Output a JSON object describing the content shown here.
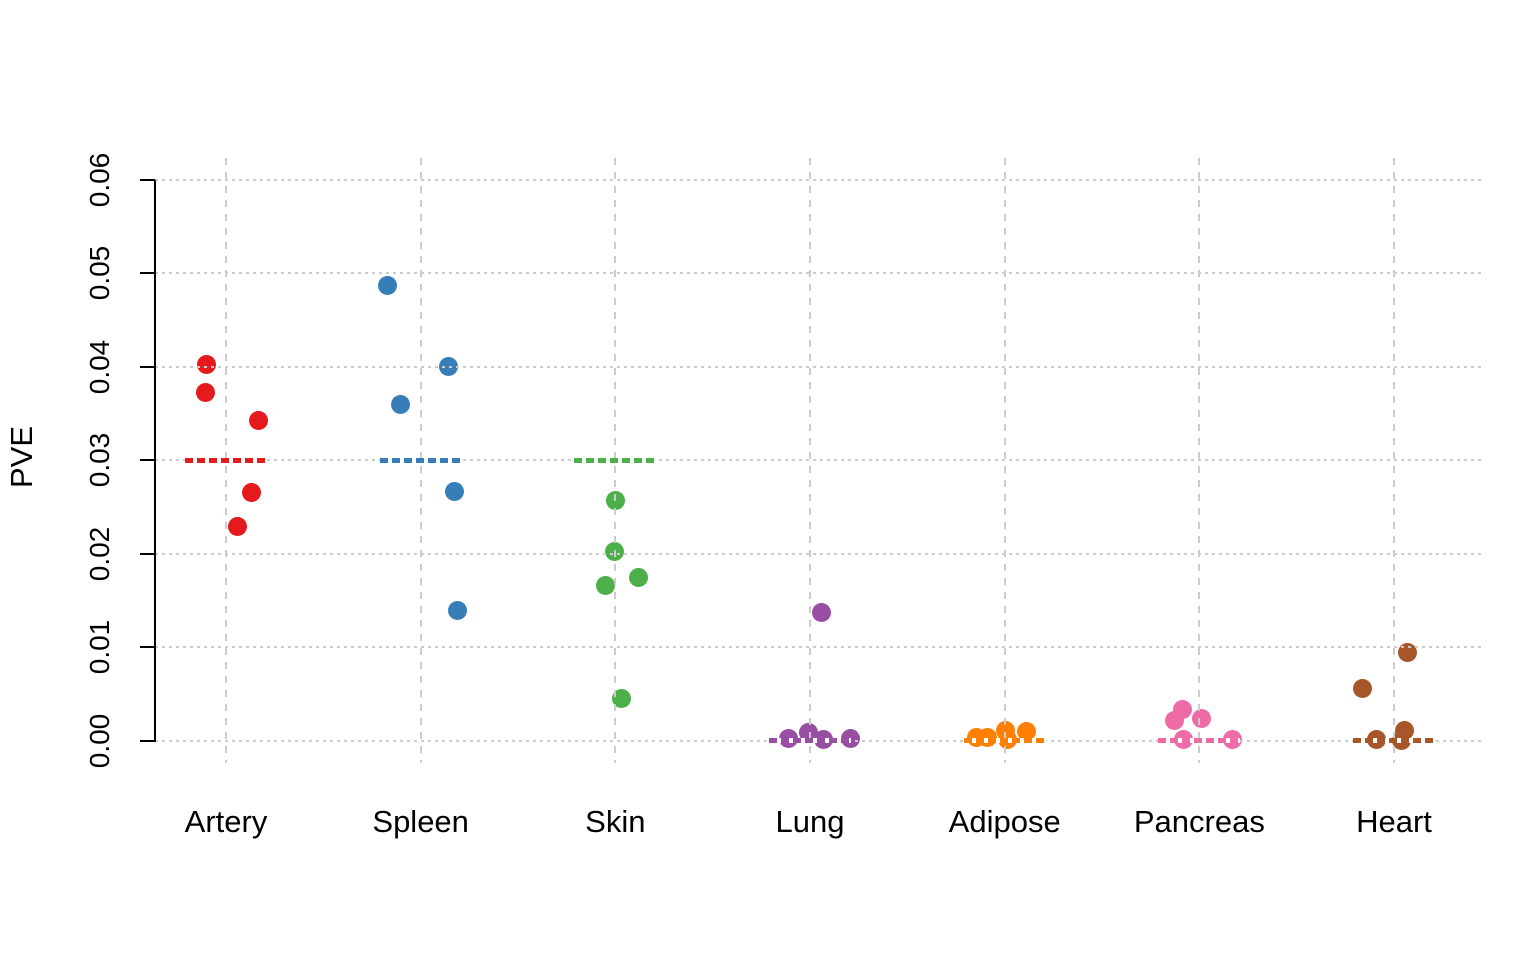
{
  "chart_data": {
    "type": "scatter",
    "variant": "stripchart-beeswarm",
    "title": "",
    "xlabel": "",
    "ylabel": "PVE",
    "ylim": [
      0,
      0.06
    ],
    "ytick_values": [
      0,
      0.01,
      0.02,
      0.03,
      0.04,
      0.05,
      0.06
    ],
    "ytick_labels": [
      "0.00",
      "0.01",
      "0.02",
      "0.03",
      "0.04",
      "0.05",
      "0.06"
    ],
    "grid": "dashed light-gray, horizontal at each y tick and vertical at each category",
    "legend_position": "none",
    "categories": [
      "Artery",
      "Spleen",
      "Skin",
      "Lung",
      "Adipose",
      "Pancreas",
      "Heart"
    ],
    "series": [
      {
        "name": "Artery",
        "color": "#e41a1c",
        "reference_line": 0.03,
        "points": [
          {
            "v": 0.0403,
            "dx": -20
          },
          {
            "v": 0.0373,
            "dx": -21
          },
          {
            "v": 0.0343,
            "dx": 32
          },
          {
            "v": 0.0265,
            "dx": 25
          },
          {
            "v": 0.0229,
            "dx": 11
          }
        ]
      },
      {
        "name": "Spleen",
        "color": "#377eb8",
        "reference_line": 0.03,
        "points": [
          {
            "v": 0.0487,
            "dx": -33
          },
          {
            "v": 0.04,
            "dx": 28
          },
          {
            "v": 0.036,
            "dx": -20
          },
          {
            "v": 0.0267,
            "dx": 34
          },
          {
            "v": 0.0139,
            "dx": 37
          }
        ]
      },
      {
        "name": "Skin",
        "color": "#4daf4a",
        "reference_line": 0.03,
        "points": [
          {
            "v": 0.0257,
            "dx": 0
          },
          {
            "v": 0.0202,
            "dx": -1
          },
          {
            "v": 0.0174,
            "dx": 23
          },
          {
            "v": 0.0166,
            "dx": -10
          },
          {
            "v": 0.0045,
            "dx": 6
          }
        ]
      },
      {
        "name": "Lung",
        "color": "#984ea3",
        "reference_line": 0.0,
        "points": [
          {
            "v": 0.0137,
            "dx": 11
          },
          {
            "v": 0.0002,
            "dx": -22
          },
          {
            "v": 0.0009,
            "dx": -2
          },
          {
            "v": 0.0001,
            "dx": 13
          },
          {
            "v": 0.0002,
            "dx": 40
          }
        ]
      },
      {
        "name": "Adipose",
        "color": "#ff7f00",
        "reference_line": 0.0,
        "points": [
          {
            "v": 0.0003,
            "dx": -28
          },
          {
            "v": 0.0003,
            "dx": -17
          },
          {
            "v": 0.0011,
            "dx": 1
          },
          {
            "v": 0.0001,
            "dx": 3
          },
          {
            "v": 0.001,
            "dx": 22
          }
        ]
      },
      {
        "name": "Pancreas",
        "color": "#ee6ba7",
        "reference_line": 0.0,
        "points": [
          {
            "v": 0.0033,
            "dx": -17
          },
          {
            "v": 0.0021,
            "dx": -25
          },
          {
            "v": 0.0024,
            "dx": 2
          },
          {
            "v": 0.0001,
            "dx": -16
          },
          {
            "v": 0.0001,
            "dx": 33
          }
        ]
      },
      {
        "name": "Heart",
        "color": "#a65628",
        "reference_line": 0.0,
        "points": [
          {
            "v": 0.0094,
            "dx": 13
          },
          {
            "v": 0.0056,
            "dx": -32
          },
          {
            "v": 0.0001,
            "dx": -18
          },
          {
            "v": 0.0011,
            "dx": 10
          },
          {
            "v": 0.0,
            "dx": 7
          }
        ]
      }
    ]
  }
}
